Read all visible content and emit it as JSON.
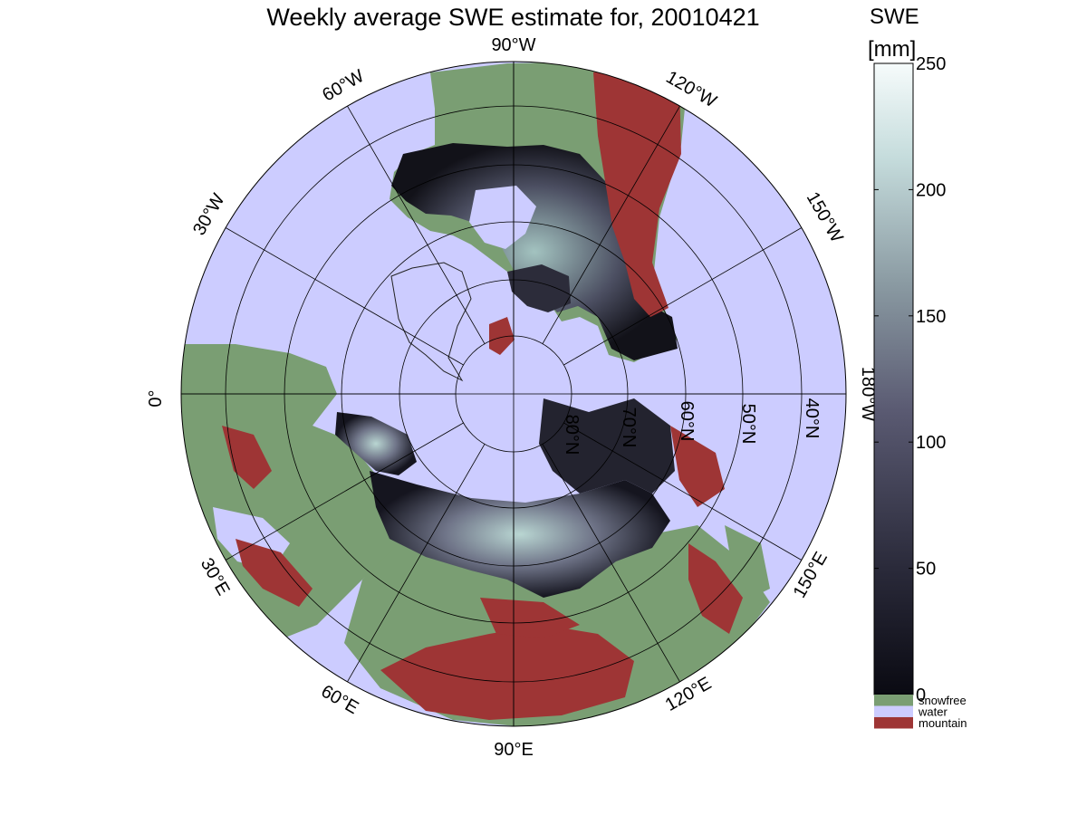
{
  "title": "Weekly average SWE estimate for, 20010421",
  "colorbar": {
    "label_line1": "SWE",
    "label_line2": "[mm]",
    "range": [
      0,
      250
    ],
    "ticks": [
      "0",
      "50",
      "100",
      "150",
      "200",
      "250"
    ]
  },
  "legend": [
    {
      "label": "snowfree",
      "color": "#7a9e73"
    },
    {
      "label": "water",
      "color": "#ccccff"
    },
    {
      "label": "mountain",
      "color": "#9e3535"
    }
  ],
  "colors": {
    "water": "#ccccff",
    "snowfree": "#7a9e73",
    "mountain": "#9e3535",
    "swe_low": "#0a0a12",
    "swe_high": "#f6fbfb"
  },
  "longitude_labels": {
    "lon_90W": "90°W",
    "lon_120W": "120°W",
    "lon_150W": "150°W",
    "lon_180W": "180°W",
    "lon_150E": "150°E",
    "lon_120E": "120°E",
    "lon_90E": "90°E",
    "lon_60E": "60°E",
    "lon_30E": "30°E",
    "lon_0": "0°",
    "lon_30W": "30°W",
    "lon_60W": "60°W"
  },
  "latitude_labels": {
    "lat_80N": "80°N",
    "lat_70N": "70°N",
    "lat_60N": "60°N",
    "lat_50N": "50°N",
    "lat_40N": "40°N"
  }
}
